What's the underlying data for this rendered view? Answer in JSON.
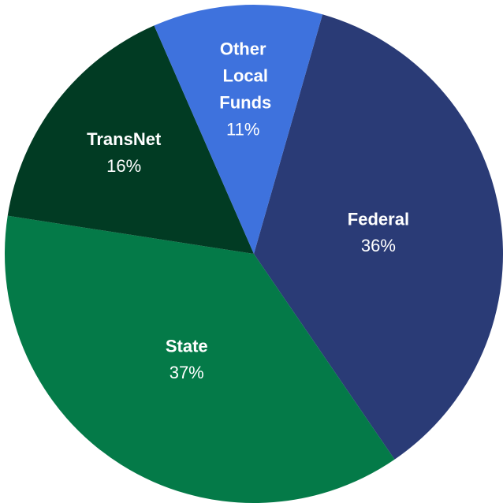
{
  "chart_data": {
    "type": "pie",
    "categories": [
      "Federal",
      "State",
      "TransNet",
      "Other Local Funds"
    ],
    "values": [
      36,
      37,
      16,
      11
    ],
    "value_labels": [
      "36%",
      "37%",
      "16%",
      "11%"
    ],
    "colors": [
      "#2a3b76",
      "#047a48",
      "#013b23",
      "#3e72dd"
    ]
  }
}
